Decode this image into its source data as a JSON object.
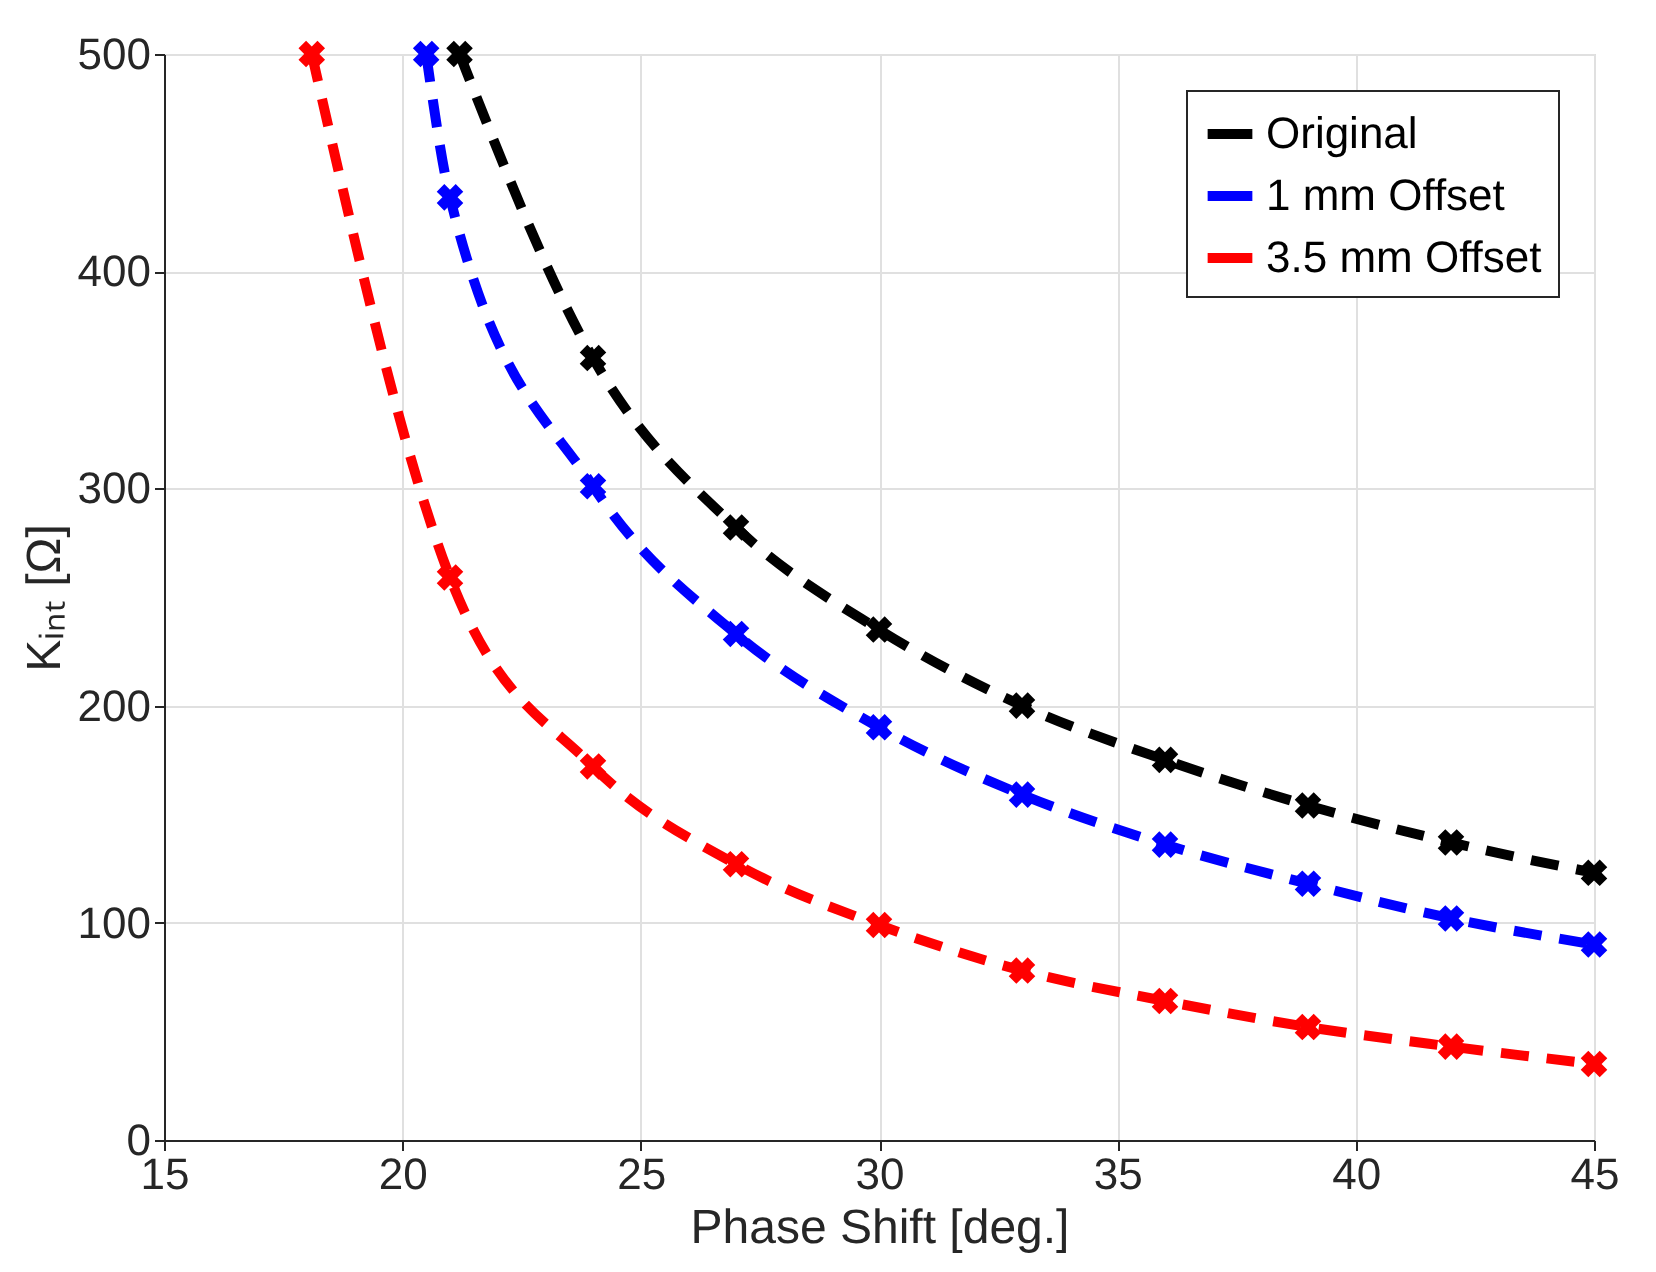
{
  "chart_data": {
    "type": "line",
    "xlabel": "Phase Shift [deg.]",
    "ylabel": "Kᵢₙₜ [Ω]",
    "xlim": [
      15,
      45
    ],
    "xticks": [
      15,
      20,
      25,
      30,
      35,
      40,
      45
    ],
    "ylim": [
      0,
      500
    ],
    "yticks": [
      0,
      100,
      200,
      300,
      400,
      500
    ],
    "grid": true,
    "legend": "top right",
    "marker": "cross",
    "line_style": "dashed",
    "series": [
      {
        "name": "Original",
        "color": "#000000",
        "x": [
          21.2,
          24,
          27,
          30,
          33,
          36,
          39,
          42,
          45
        ],
        "values": [
          500,
          360,
          282,
          235,
          200,
          175,
          154,
          137,
          123
        ]
      },
      {
        "name": "1 mm Offset",
        "color": "#0000ff",
        "x": [
          20.5,
          21,
          24,
          27,
          30,
          33,
          36,
          39,
          42,
          45
        ],
        "values": [
          500,
          434,
          301,
          233,
          190,
          159,
          136,
          118,
          102,
          90
        ]
      },
      {
        "name": "3.5 mm Offset",
        "color": "#ff0000",
        "x": [
          18.1,
          21,
          24,
          27,
          30,
          33,
          36,
          39,
          42,
          45
        ],
        "values": [
          500,
          259,
          172,
          127,
          99,
          78,
          64,
          52,
          43,
          35
        ]
      }
    ]
  }
}
